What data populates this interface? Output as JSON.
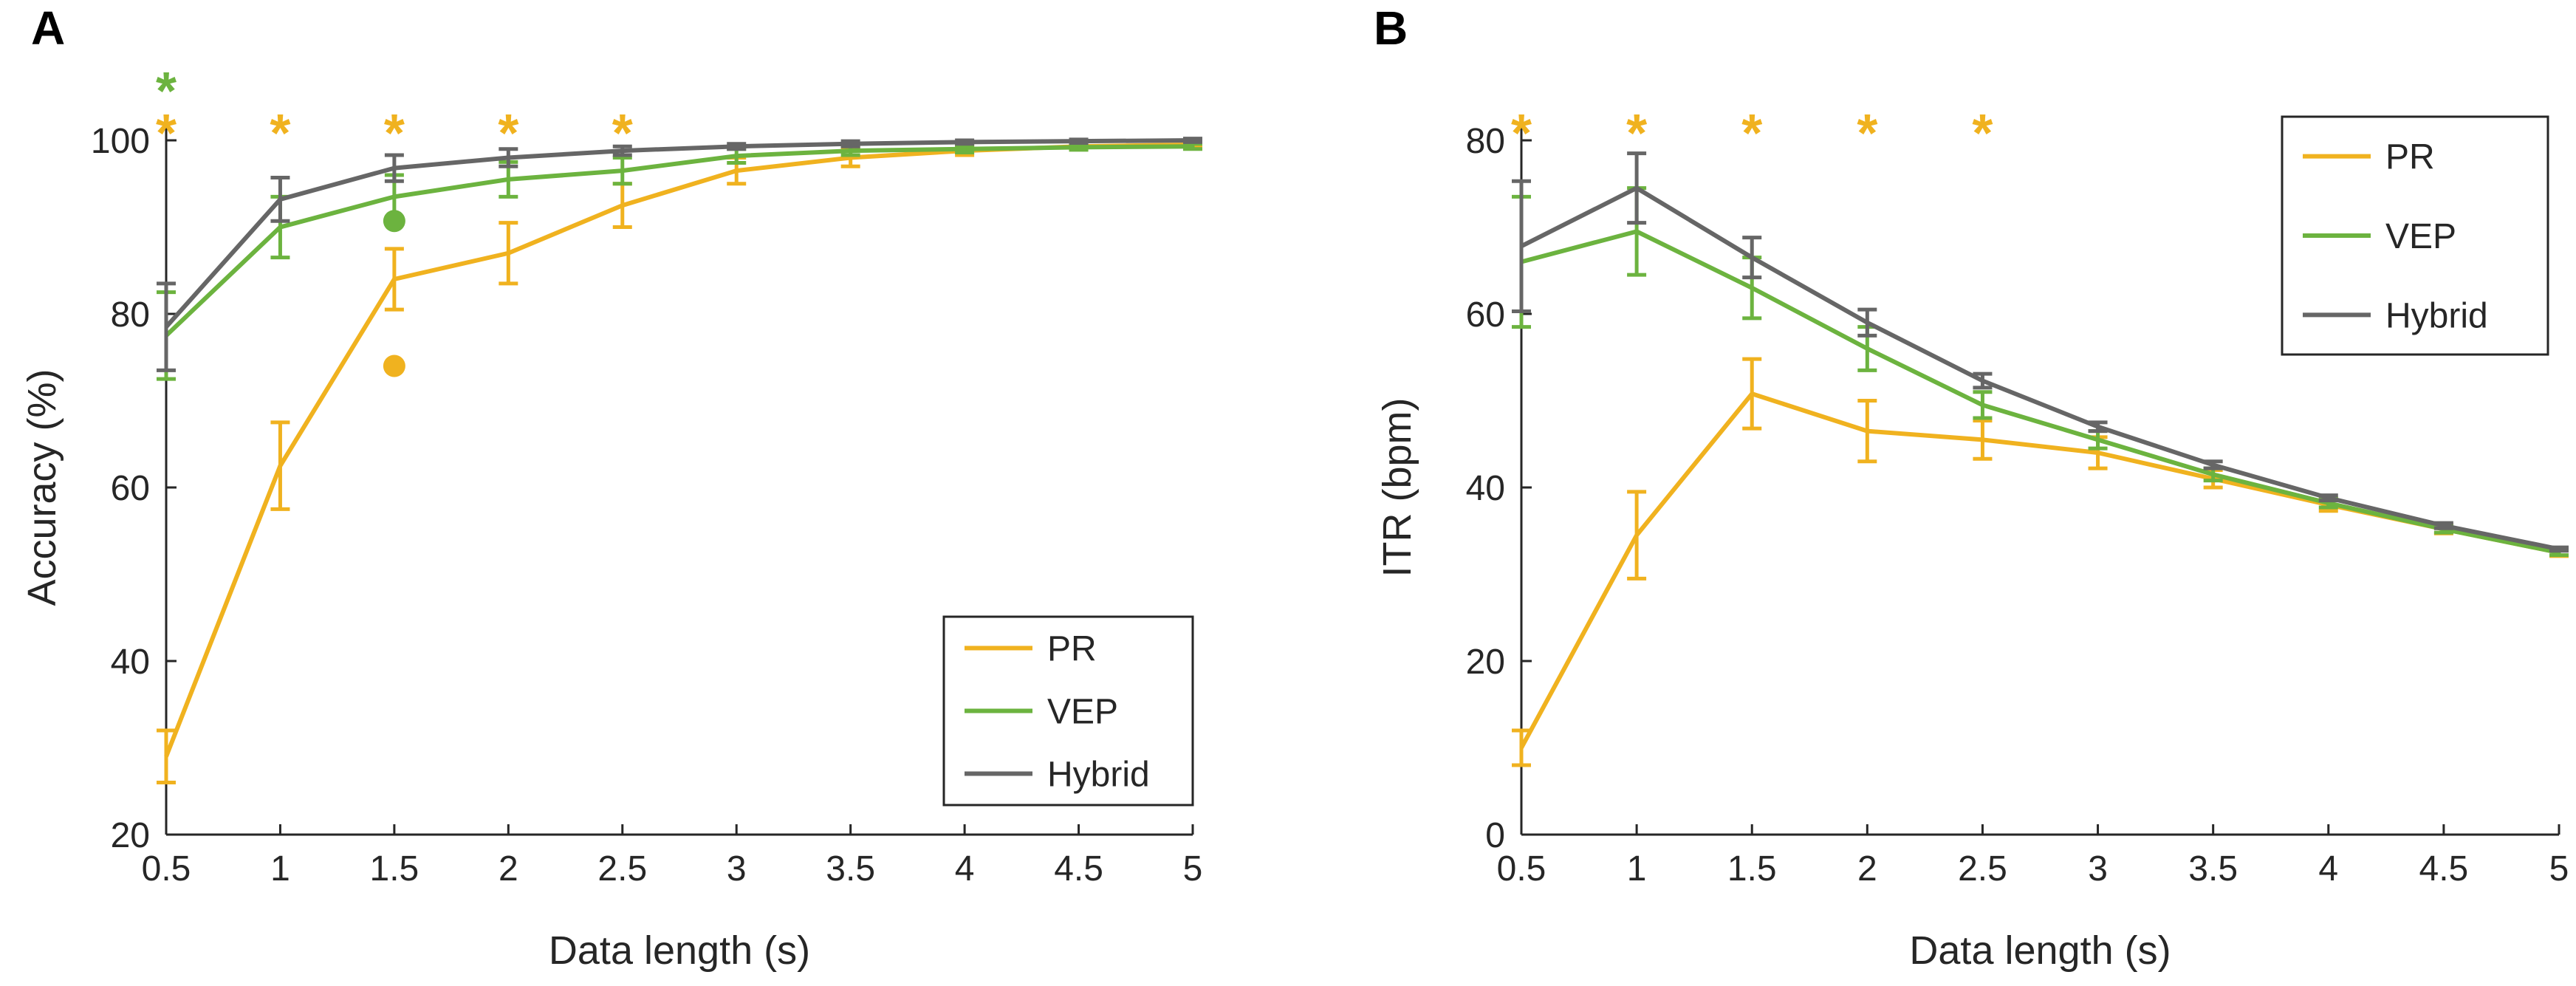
{
  "colors": {
    "PR": "#f0b21f",
    "VEP": "#6cb33f",
    "Hybrid": "#666666",
    "axis": "#262626"
  },
  "chart_data": [
    {
      "panel_label": "A",
      "type": "line",
      "xlabel": "Data length (s)",
      "ylabel": "Accuracy (%)",
      "xlim": [
        0.5,
        5
      ],
      "ylim": [
        20,
        100
      ],
      "xticks": [
        "0.5",
        "1",
        "1.5",
        "2",
        "2.5",
        "3",
        "3.5",
        "4",
        "4.5",
        "5"
      ],
      "yticks": [
        "20",
        "40",
        "60",
        "80",
        "100"
      ],
      "x": [
        0.5,
        1,
        1.5,
        2,
        2.5,
        3,
        3.5,
        4,
        4.5,
        5
      ],
      "series": [
        {
          "name": "PR",
          "color": "#f0b21f",
          "values": [
            29,
            62.5,
            84,
            87,
            92.5,
            96.5,
            98,
            98.8,
            99.3,
            99.5
          ],
          "errors": [
            3,
            5,
            3.5,
            3.5,
            2.5,
            1.5,
            1,
            0.5,
            0.3,
            0.3
          ]
        },
        {
          "name": "VEP",
          "color": "#6cb33f",
          "values": [
            77.5,
            90,
            93.5,
            95.5,
            96.5,
            98.2,
            98.8,
            99,
            99.2,
            99.3
          ],
          "errors": [
            5,
            3.5,
            2.5,
            2,
            1.5,
            0.8,
            0.5,
            0.4,
            0.3,
            0.3
          ]
        },
        {
          "name": "Hybrid",
          "color": "#666666",
          "values": [
            78.5,
            93.2,
            96.8,
            98,
            98.8,
            99.3,
            99.6,
            99.8,
            99.9,
            100
          ],
          "errors": [
            5,
            2.5,
            1.5,
            1,
            0.5,
            0.3,
            0.3,
            0.2,
            0.2,
            0.2
          ]
        }
      ],
      "markers": [
        {
          "series": "VEP",
          "x": 1.5,
          "y": 90.7
        },
        {
          "series": "PR",
          "x": 1.5,
          "y": 74
        }
      ],
      "significance": [
        {
          "x": 0.5,
          "row": 1,
          "series": "VEP",
          "symbol": "*"
        },
        {
          "x": 0.5,
          "row": 0,
          "series": "PR",
          "symbol": "*"
        },
        {
          "x": 1,
          "row": 0,
          "series": "PR",
          "symbol": "*"
        },
        {
          "x": 1.5,
          "row": 0,
          "series": "PR",
          "symbol": "*"
        },
        {
          "x": 2,
          "row": 0,
          "series": "PR",
          "symbol": "*"
        },
        {
          "x": 2.5,
          "row": 0,
          "series": "PR",
          "symbol": "*"
        }
      ],
      "legend": {
        "location": "bottom-right",
        "entries": [
          "PR",
          "VEP",
          "Hybrid"
        ]
      }
    },
    {
      "panel_label": "B",
      "type": "line",
      "xlabel": "Data length (s)",
      "ylabel": "ITR (bpm)",
      "xlim": [
        0.5,
        5
      ],
      "ylim": [
        0,
        80
      ],
      "xticks": [
        "0.5",
        "1",
        "1.5",
        "2",
        "2.5",
        "3",
        "3.5",
        "4",
        "4.5",
        "5"
      ],
      "yticks": [
        "0",
        "20",
        "40",
        "60",
        "80"
      ],
      "x": [
        0.5,
        1,
        1.5,
        2,
        2.5,
        3,
        3.5,
        4,
        4.5,
        5
      ],
      "series": [
        {
          "name": "PR",
          "color": "#f0b21f",
          "values": [
            10,
            34.5,
            50.8,
            46.5,
            45.5,
            44,
            41,
            38,
            35.2,
            32.5
          ],
          "errors": [
            2,
            5,
            4,
            3.5,
            2.2,
            1.8,
            1,
            0.7,
            0.5,
            0.4
          ]
        },
        {
          "name": "VEP",
          "color": "#6cb33f",
          "values": [
            66,
            69.5,
            63,
            56,
            49.5,
            45.5,
            41.5,
            38.2,
            35.2,
            32.5
          ],
          "errors": [
            7.5,
            5,
            3.5,
            2.5,
            1.5,
            1,
            0.7,
            0.5,
            0.4,
            0.3
          ]
        },
        {
          "name": "Hybrid",
          "color": "#666666",
          "values": [
            67.8,
            74.5,
            66.5,
            59,
            52.3,
            47,
            42.6,
            38.8,
            35.6,
            32.9
          ],
          "errors": [
            7.5,
            4,
            2.3,
            1.5,
            0.8,
            0.5,
            0.4,
            0.3,
            0.3,
            0.2
          ]
        }
      ],
      "significance": [
        {
          "x": 0.5,
          "row": 0,
          "series": "PR",
          "symbol": "*"
        },
        {
          "x": 1,
          "row": 0,
          "series": "PR",
          "symbol": "*"
        },
        {
          "x": 1.5,
          "row": 0,
          "series": "PR",
          "symbol": "*"
        },
        {
          "x": 2,
          "row": 0,
          "series": "PR",
          "symbol": "*"
        },
        {
          "x": 2.5,
          "row": 0,
          "series": "PR",
          "symbol": "*"
        }
      ],
      "legend": {
        "location": "top-right",
        "entries": [
          "PR",
          "VEP",
          "Hybrid"
        ]
      }
    }
  ]
}
